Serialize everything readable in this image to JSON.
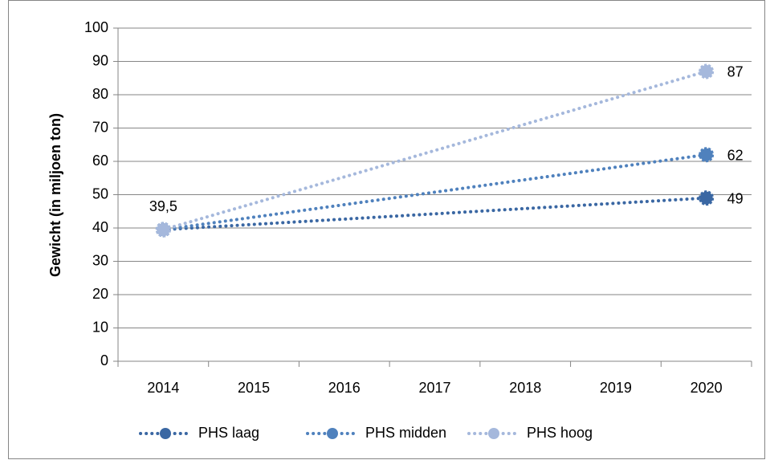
{
  "chart_data": {
    "type": "line",
    "y_label": "Gewicht (in miljoen ton)",
    "x": [
      2014,
      2020
    ],
    "xlim": [
      2013.5,
      2020.5
    ],
    "xticks": [
      2014,
      2015,
      2016,
      2017,
      2018,
      2019,
      2020
    ],
    "ylim": [
      0,
      100
    ],
    "yticks": [
      0,
      10,
      20,
      30,
      40,
      50,
      60,
      70,
      80,
      90,
      100
    ],
    "grid": true,
    "legend": "bottom",
    "series": [
      {
        "name": "PHS laag",
        "color": "#3a67a3",
        "values": [
          39.5,
          49
        ],
        "value_labels": [
          null,
          "49"
        ]
      },
      {
        "name": "PHS midden",
        "color": "#4f81bd",
        "values": [
          39.5,
          62
        ],
        "value_labels": [
          null,
          "62"
        ]
      },
      {
        "name": "PHS hoog",
        "color": "#a5b8dc",
        "values": [
          39.5,
          87
        ],
        "value_labels": [
          "39,5",
          "87"
        ]
      }
    ]
  }
}
